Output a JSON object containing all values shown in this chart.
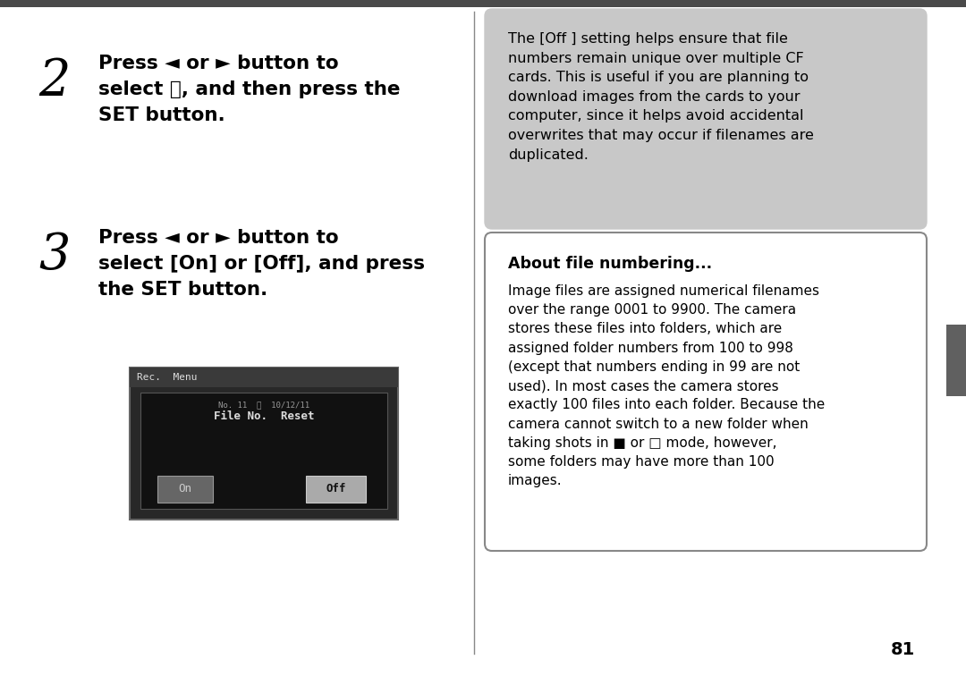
{
  "bg_color": "#ffffff",
  "top_bar_color": "#4a4a4a",
  "right_tab_color": "#606060",
  "step2_number": "2",
  "step3_number": "3",
  "step2_text": "Press ◄ or ► button to\nselect Ⓝ, and then press the\nSET button.",
  "step3_text": "Press ◄ or ► button to\nselect [On] or [Off], and press\nthe SET button.",
  "gray_box_text": "The [Off ] setting helps ensure that file\nnumbers remain unique over multiple CF\ncards. This is useful if you are planning to\ndownload images from the cards to your\ncomputer, since it helps avoid accidental\noverwrites that may occur if filenames are\nduplicated.",
  "info_box_title": "About file numbering...",
  "info_box_text": "Image files are assigned numerical filenames\nover the range 0001 to 9900. The camera\nstores these files into folders, which are\nassigned folder numbers from 100 to 998\n(except that numbers ending in 99 are not\nused). In most cases the camera stores\nexactly 100 files into each folder. Because the\ncamera cannot switch to a new folder when\ntaking shots in ■ or □ mode, however,\nsome folders may have more than 100\nimages.",
  "page_number": "81",
  "divider_color": "#888888",
  "screen_dark": "#282828",
  "screen_header": "#3a3a3a",
  "screen_inner": "#111111",
  "off_btn_color": "#888888",
  "gray_box_bg": "#c8c8c8",
  "info_box_border": "#888888"
}
